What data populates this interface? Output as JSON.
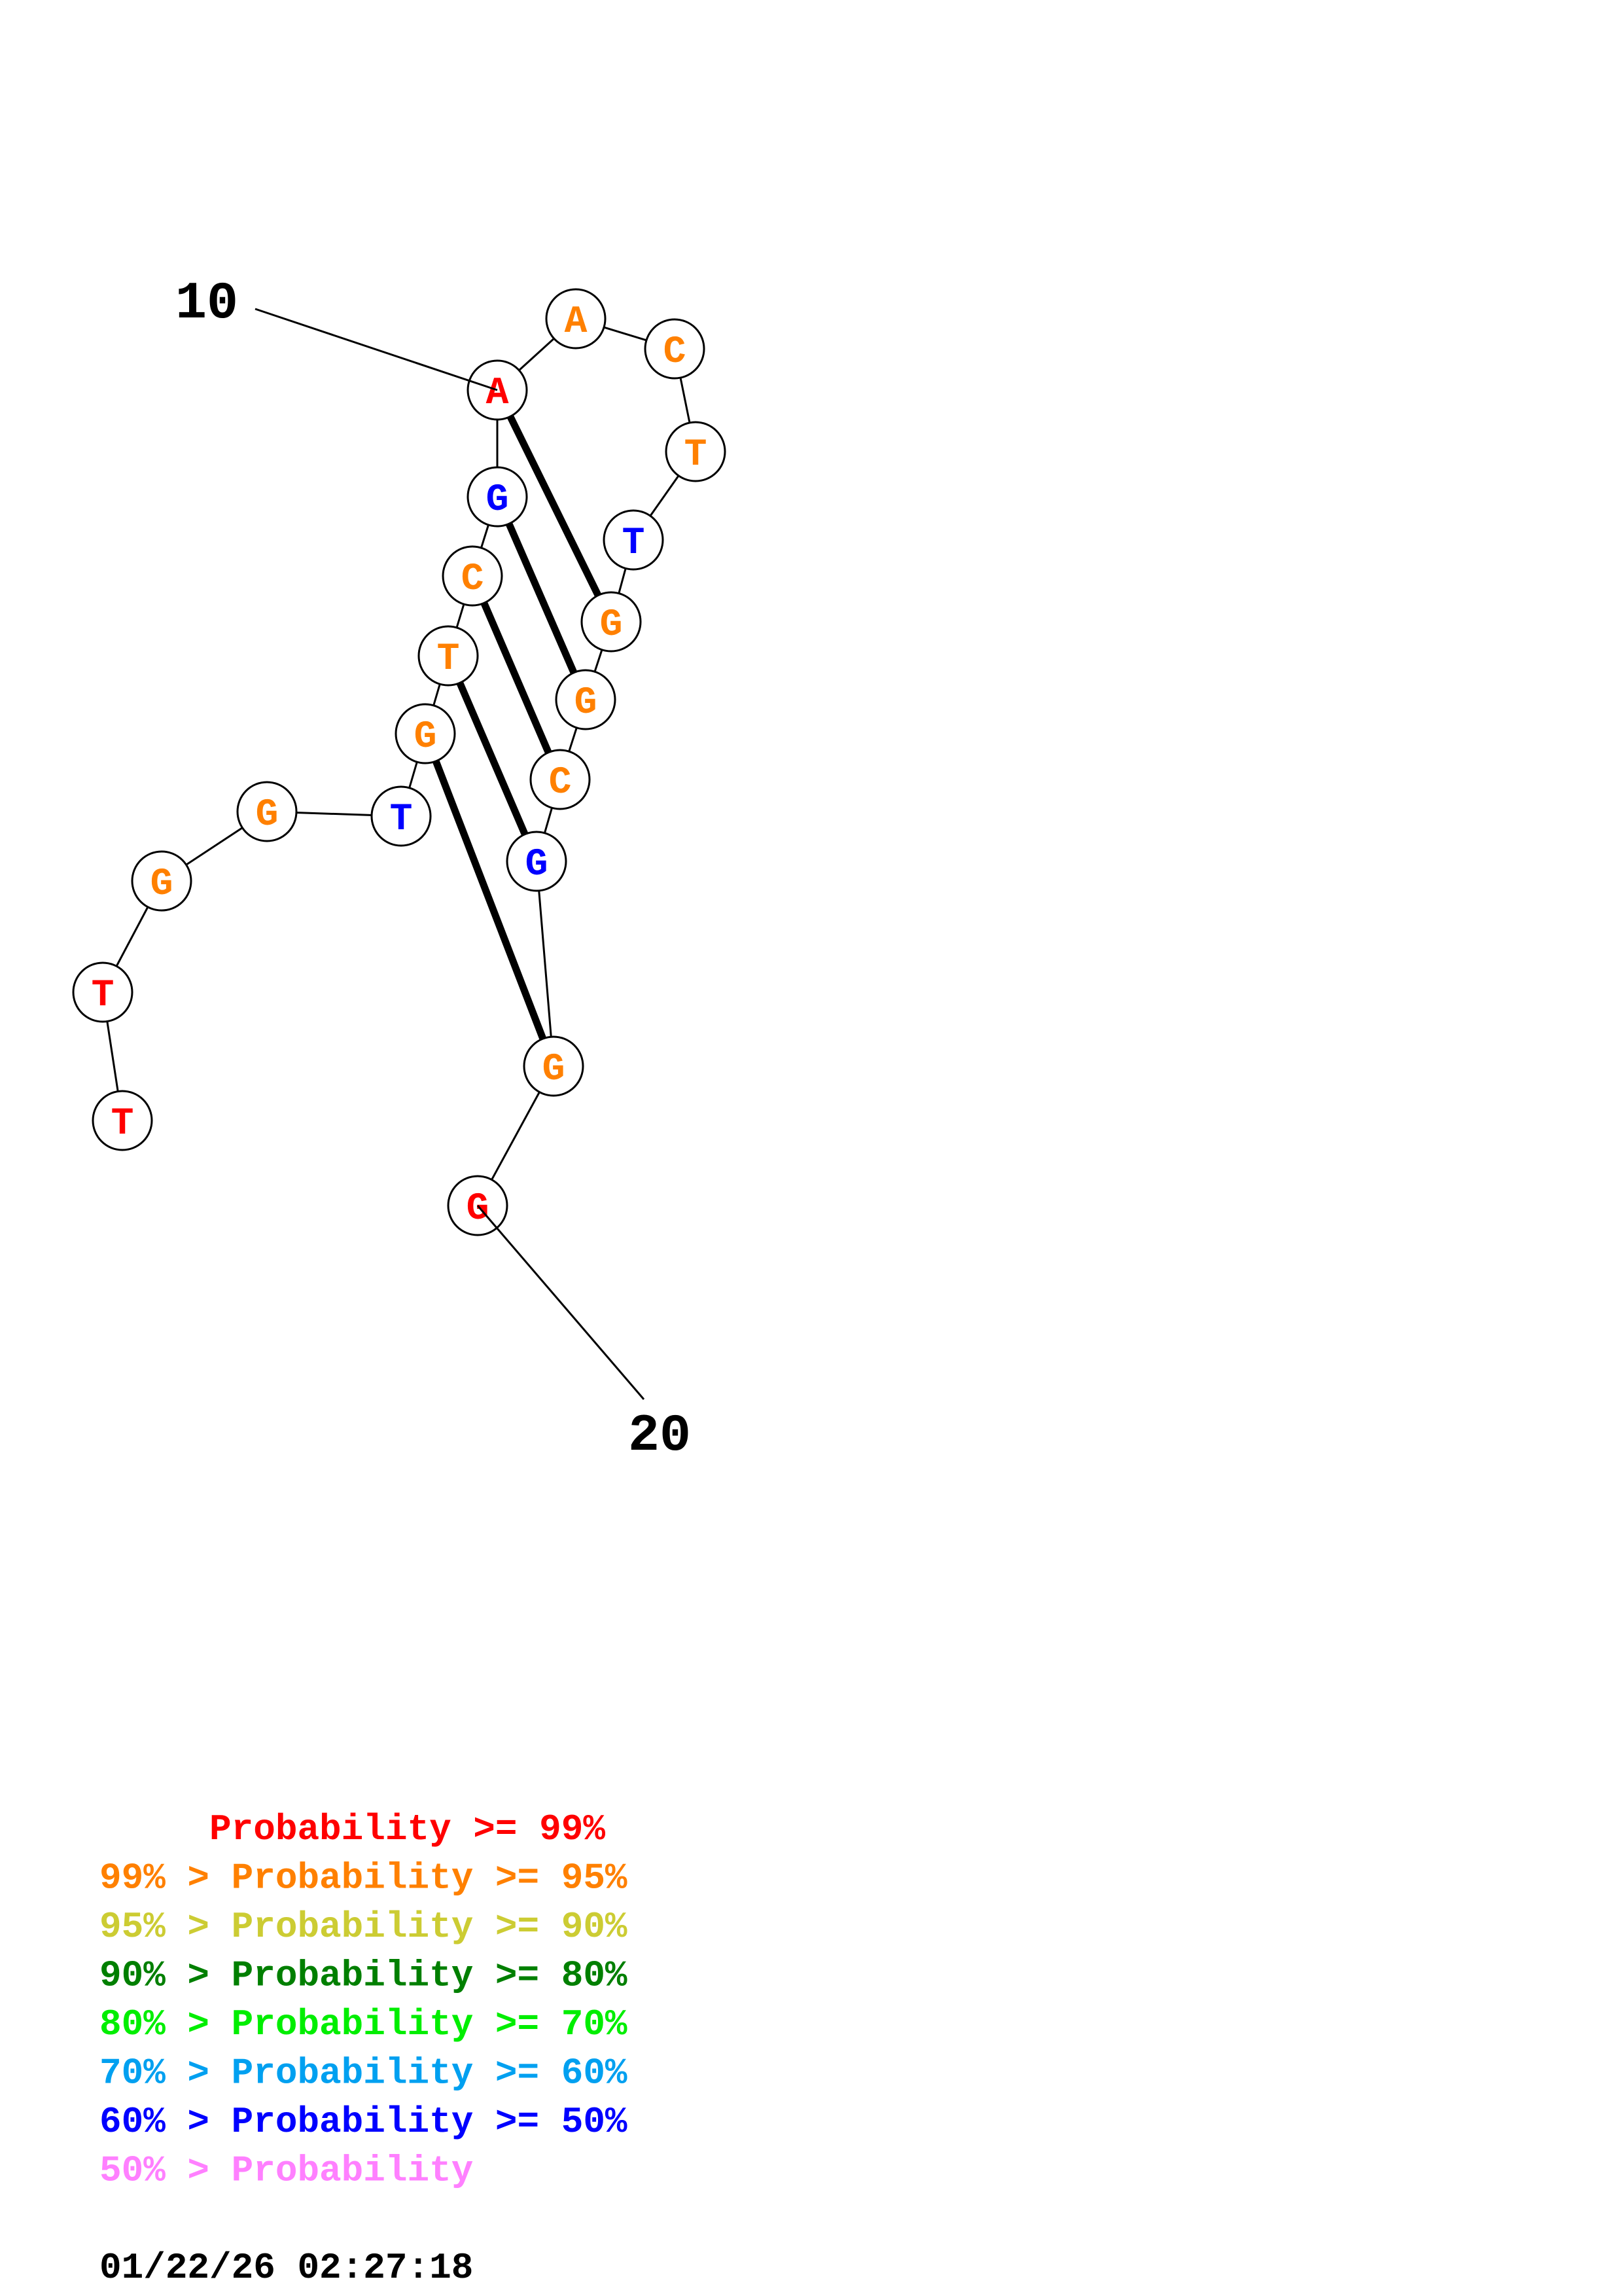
{
  "colors": {
    "p99": "#ff0000",
    "p95": "#ff8000",
    "p90": "#cccc33",
    "p80": "#007f00",
    "p70": "#00ee00",
    "p60": "#00a0f0",
    "p50": "#0000ff",
    "plt50": "#ff80ff",
    "black": "#000000"
  },
  "structure": {
    "nucleotides": [
      {
        "base": "T",
        "color": "p99"
      },
      {
        "base": "T",
        "color": "p99"
      },
      {
        "base": "G",
        "color": "p95"
      },
      {
        "base": "G",
        "color": "p95"
      },
      {
        "base": "T",
        "color": "p50"
      },
      {
        "base": "G",
        "color": "p95"
      },
      {
        "base": "T",
        "color": "p95"
      },
      {
        "base": "C",
        "color": "p95"
      },
      {
        "base": "G",
        "color": "p50"
      },
      {
        "base": "A",
        "color": "p99"
      },
      {
        "base": "A",
        "color": "p95"
      },
      {
        "base": "C",
        "color": "p95"
      },
      {
        "base": "T",
        "color": "p95"
      },
      {
        "base": "T",
        "color": "p50"
      },
      {
        "base": "G",
        "color": "p95"
      },
      {
        "base": "G",
        "color": "p95"
      },
      {
        "base": "C",
        "color": "p95"
      },
      {
        "base": "G",
        "color": "p50"
      },
      {
        "base": "G",
        "color": "p95"
      },
      {
        "base": "G",
        "color": "p99"
      }
    ],
    "pairs": [
      [
        9,
        14
      ],
      [
        8,
        15
      ],
      [
        7,
        16
      ],
      [
        6,
        17
      ],
      [
        5,
        18
      ]
    ],
    "position_labels": [
      {
        "text": "10",
        "index": 10
      },
      {
        "text": "20",
        "index": 20
      }
    ]
  },
  "legend": [
    {
      "text": "     Probability >= 99%",
      "color": "p99"
    },
    {
      "text": "99% > Probability >= 95%",
      "color": "p95"
    },
    {
      "text": "95% > Probability >= 90%",
      "color": "p90"
    },
    {
      "text": "90% > Probability >= 80%",
      "color": "p80"
    },
    {
      "text": "80% > Probability >= 70%",
      "color": "p70"
    },
    {
      "text": "70% > Probability >= 60%",
      "color": "p60"
    },
    {
      "text": "60% > Probability >= 50%",
      "color": "p50"
    },
    {
      "text": "50% > Probability",
      "color": "plt50"
    }
  ],
  "timestamp": "01/22/26 02:27:18"
}
